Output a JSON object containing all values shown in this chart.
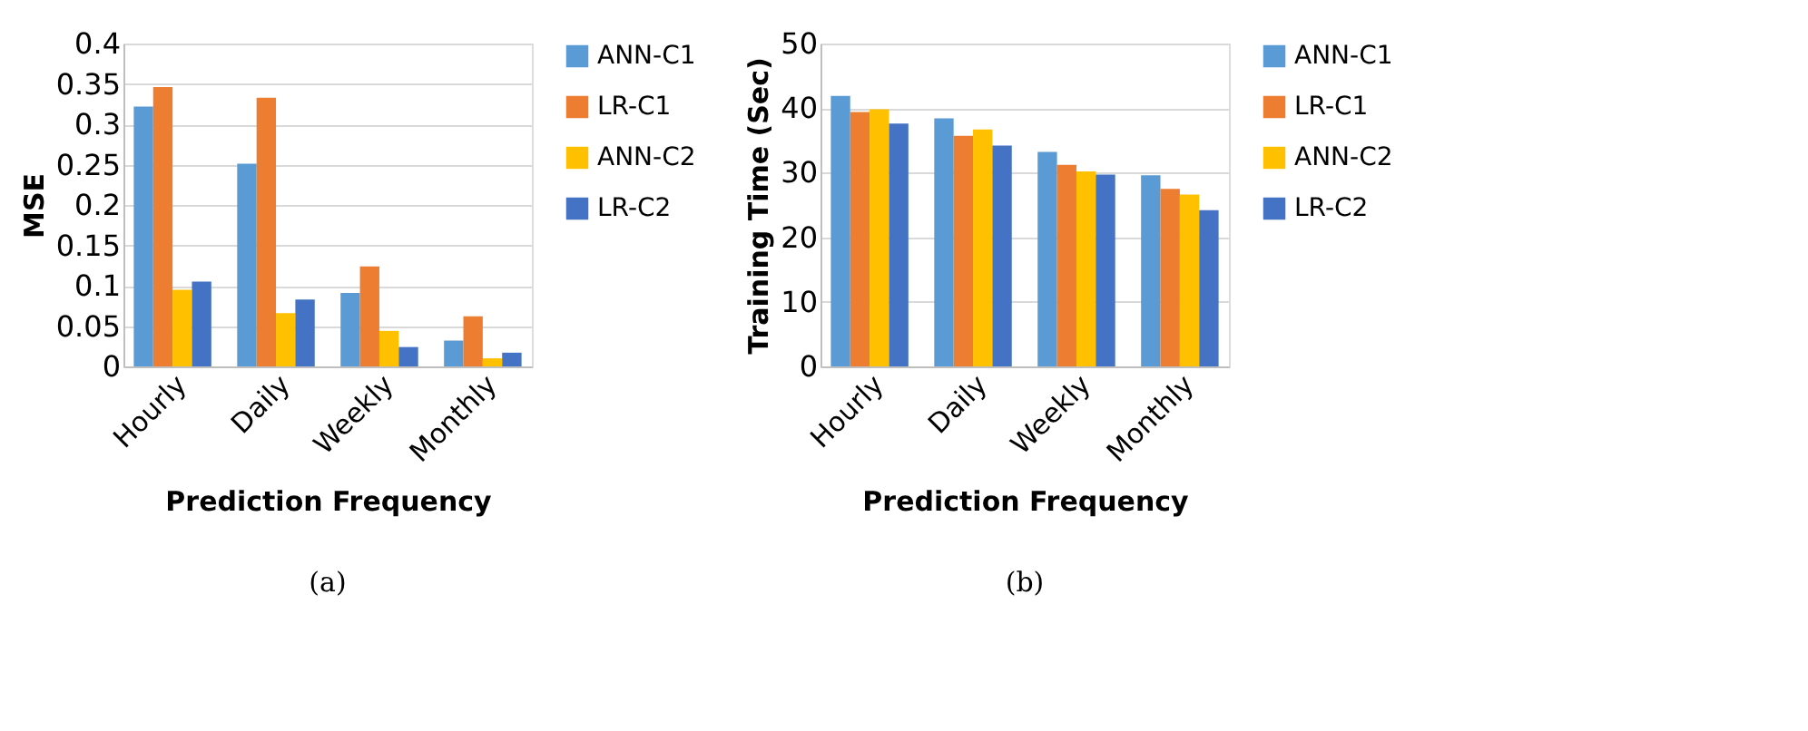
{
  "chart_data": [
    {
      "type": "bar",
      "xlabel": "Prediction Frequency",
      "ylabel": "MSE",
      "categories": [
        "Hourly",
        "Daily",
        "Weekly",
        "Monthly"
      ],
      "ylim": [
        0,
        0.4
      ],
      "yticks": [
        0,
        0.05,
        0.1,
        0.15,
        0.2,
        0.25,
        0.3,
        0.35,
        0.4
      ],
      "grid": "y",
      "legend": "right",
      "annotations": [
        "(a)"
      ],
      "series": [
        {
          "name": "ANN-C1",
          "color": "#5b9bd5",
          "values": [
            0.322,
            0.251,
            0.091,
            0.032
          ]
        },
        {
          "name": "LR-C1",
          "color": "#ed7d31",
          "values": [
            0.346,
            0.333,
            0.124,
            0.062
          ]
        },
        {
          "name": "ANN-C2",
          "color": "#ffc000",
          "values": [
            0.095,
            0.066,
            0.044,
            0.01
          ]
        },
        {
          "name": "LR-C2",
          "color": "#4472c4",
          "values": [
            0.105,
            0.083,
            0.024,
            0.017
          ]
        }
      ]
    },
    {
      "type": "bar",
      "xlabel": "Prediction Frequency",
      "ylabel": "Training Time (Sec)",
      "categories": [
        "Hourly",
        "Daily",
        "Weekly",
        "Monthly"
      ],
      "ylim": [
        0,
        50
      ],
      "yticks": [
        0,
        10,
        20,
        30,
        40,
        50
      ],
      "grid": "y",
      "legend": "right",
      "annotations": [
        "(b)"
      ],
      "series": [
        {
          "name": "ANN-C1",
          "color": "#5b9bd5",
          "values": [
            41.9,
            38.4,
            33.2,
            29.6
          ]
        },
        {
          "name": "LR-C1",
          "color": "#ed7d31",
          "values": [
            39.4,
            35.7,
            31.2,
            27.5
          ]
        },
        {
          "name": "ANN-C2",
          "color": "#ffc000",
          "values": [
            39.8,
            36.7,
            30.2,
            26.6
          ]
        },
        {
          "name": "LR-C2",
          "color": "#4472c4",
          "values": [
            37.6,
            34.2,
            29.7,
            24.2
          ]
        }
      ]
    }
  ]
}
